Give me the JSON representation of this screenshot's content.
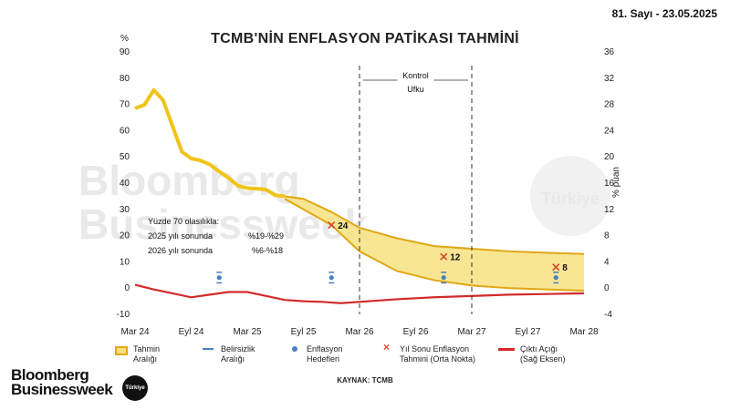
{
  "issue": "81. Sayı - 23.05.2025",
  "title": "TCMB'NİN ENFLASYON PATİKASI TAHMİNİ",
  "source": "KAYNAK: TCMB",
  "logo": {
    "line1": "Bloomberg",
    "line2": "Businessweek",
    "badge": "Türkiye"
  },
  "watermark": {
    "line1": "Bloomberg",
    "line2": "Businessweek",
    "badge": "Türkiye"
  },
  "annotation": {
    "line1": "Yüzde 70 olasılıkla:",
    "line2_label": "2025 yılı sonunda",
    "line2_value": "%19-%29",
    "line3_label": "2026 yılı sonunda",
    "line3_value": "%6-%18"
  },
  "control_horizon": {
    "line1": "Kontrol",
    "line2": "Ufku",
    "start": "Mar 26",
    "end": "Mar 27"
  },
  "legend": [
    {
      "key": "band",
      "label": "Tahmin\nAralığı",
      "color": "#f0c419"
    },
    {
      "key": "unc",
      "label": "Belirsizlik\nAralığı",
      "color": "#4a7fc1"
    },
    {
      "key": "target",
      "label": "Enflasyon\nHedefleri",
      "color": "#4a7fc1"
    },
    {
      "key": "cross",
      "label": "Yıl Sonu Enflasyon\nTahmini (Orta Nokta)",
      "color": "#d6462f"
    },
    {
      "key": "gap",
      "label": "Çıktı Açığı\n(Sağ Eksen)",
      "color": "#d42a2a"
    }
  ],
  "chart_data": {
    "type": "line",
    "title": "TCMB'NİN ENFLASYON PATİKASI TAHMİNİ",
    "x_ticks": [
      "Mar 24",
      "Eyl 24",
      "Mar 25",
      "Eyl 25",
      "Mar 26",
      "Eyl 26",
      "Mar 27",
      "Eyl 27",
      "Mar 28"
    ],
    "x_range_months": [
      0,
      48
    ],
    "left_axis": {
      "unit": "%",
      "min": -10,
      "max": 90,
      "ticks": [
        -10,
        0,
        10,
        20,
        30,
        40,
        50,
        60,
        70,
        80,
        90
      ]
    },
    "right_axis": {
      "unit": "% puan",
      "min": -4,
      "max": 36,
      "ticks": [
        -4,
        0,
        4,
        8,
        12,
        16,
        20,
        24,
        28,
        32,
        36
      ]
    },
    "inflation_actual": [
      [
        0,
        68.5
      ],
      [
        1,
        69.8
      ],
      [
        2,
        75.5
      ],
      [
        3,
        71.6
      ],
      [
        4,
        61.8
      ],
      [
        5,
        52
      ],
      [
        6,
        49.4
      ],
      [
        7,
        48.6
      ],
      [
        8,
        47.1
      ],
      [
        9,
        44.4
      ],
      [
        10,
        42
      ],
      [
        11,
        39
      ],
      [
        12,
        38.1
      ],
      [
        13,
        37.9
      ],
      [
        14,
        37.5
      ],
      [
        15,
        35.4
      ],
      [
        16,
        35
      ]
    ],
    "forecast_band_upper": [
      [
        16,
        35
      ],
      [
        18,
        34
      ],
      [
        21,
        29
      ],
      [
        24,
        23
      ],
      [
        28,
        19
      ],
      [
        32,
        16
      ],
      [
        36,
        15
      ],
      [
        40,
        14
      ],
      [
        44,
        13.5
      ],
      [
        48,
        13
      ]
    ],
    "forecast_band_lower": [
      [
        16,
        34
      ],
      [
        18,
        30
      ],
      [
        21,
        24
      ],
      [
        24,
        14
      ],
      [
        28,
        6.5
      ],
      [
        32,
        3
      ],
      [
        36,
        1
      ],
      [
        40,
        0
      ],
      [
        44,
        -0.5
      ],
      [
        48,
        -1
      ]
    ],
    "year_end_forecasts": [
      {
        "x": 21,
        "y": 24,
        "label": "24"
      },
      {
        "x": 33,
        "y": 12,
        "label": "12"
      },
      {
        "x": 45,
        "y": 8,
        "label": "8"
      }
    ],
    "inflation_targets": [
      {
        "x": 9,
        "y": 4,
        "lo": 2,
        "hi": 6
      },
      {
        "x": 21,
        "y": 4,
        "lo": 2,
        "hi": 6
      },
      {
        "x": 33,
        "y": 4,
        "lo": 2,
        "hi": 6
      },
      {
        "x": 45,
        "y": 4,
        "lo": 2,
        "hi": 6
      }
    ],
    "output_gap_right_axis": [
      [
        0,
        0.5
      ],
      [
        2,
        -0.2
      ],
      [
        4,
        -0.8
      ],
      [
        6,
        -1.4
      ],
      [
        8,
        -1.0
      ],
      [
        10,
        -0.6
      ],
      [
        12,
        -0.6
      ],
      [
        14,
        -1.2
      ],
      [
        16,
        -1.8
      ],
      [
        18,
        -2.0
      ],
      [
        20,
        -2.1
      ],
      [
        22,
        -2.3
      ],
      [
        24,
        -2.1
      ],
      [
        28,
        -1.7
      ],
      [
        32,
        -1.4
      ],
      [
        36,
        -1.2
      ],
      [
        40,
        -1.0
      ],
      [
        44,
        -0.9
      ],
      [
        48,
        -0.8
      ]
    ],
    "legend_placement": "bottom",
    "grid": false
  }
}
